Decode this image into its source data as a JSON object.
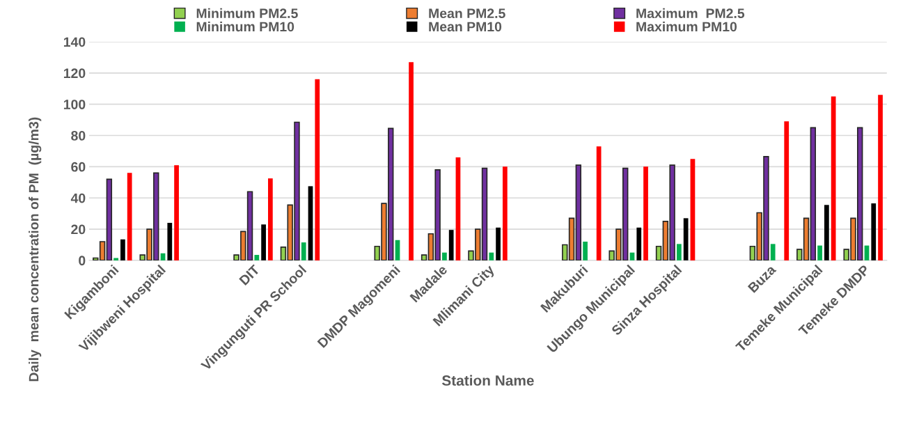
{
  "chart_data": {
    "type": "bar",
    "xlabel": "Station Name",
    "ylabel": "Daily  mean concentration of PM  (µg/m3)",
    "categories": [
      "Kigamboni",
      "Vijibweni Hospital",
      null,
      "DIT",
      "Vingunguti PR School",
      null,
      "DMDP Magomeni",
      "Madale",
      "Mlimani City",
      null,
      "Makuburi",
      "Ubungo Municipal",
      "Sinza Hospital",
      null,
      "Buza",
      "Temeke Municipal",
      "Temeke DMDP"
    ],
    "series": [
      {
        "name": "Minimum PM2.5",
        "color": "#92d050",
        "values": [
          1.5,
          3.5,
          null,
          3.5,
          8.5,
          null,
          9,
          3.5,
          6,
          null,
          10,
          6,
          9,
          null,
          9,
          7,
          7
        ]
      },
      {
        "name": "Mean PM2.5",
        "color": "#ed7d31",
        "values": [
          12,
          20,
          null,
          18.5,
          35.5,
          null,
          36.5,
          17,
          20,
          null,
          27,
          20,
          25,
          null,
          30.5,
          27,
          27
        ]
      },
      {
        "name": "Maximum  PM2.5",
        "color": "#7030a0",
        "values": [
          52,
          56,
          null,
          44,
          88.5,
          null,
          84.5,
          58,
          59,
          null,
          61,
          59,
          61,
          null,
          66.5,
          85,
          85
        ]
      },
      {
        "name": "Minimum PM10",
        "color": "#00b050",
        "values": [
          1.5,
          4.5,
          null,
          3.5,
          11.5,
          null,
          13,
          5,
          5,
          null,
          12,
          5,
          10.5,
          null,
          10.5,
          9.5,
          9.5
        ]
      },
      {
        "name": "Mean PM10",
        "color": "#000000",
        "values": [
          13.5,
          24,
          null,
          23,
          47.5,
          null,
          null,
          19.5,
          21,
          null,
          null,
          21,
          27,
          null,
          null,
          35.5,
          36.5
        ]
      },
      {
        "name": "Maximum PM10",
        "color": "#ff0000",
        "values": [
          56,
          61,
          null,
          52.5,
          116,
          null,
          127,
          66,
          60,
          null,
          73,
          60,
          65,
          null,
          89,
          105,
          106
        ]
      }
    ],
    "ylim": [
      0,
      140
    ],
    "yticks": [
      0,
      20,
      40,
      60,
      80,
      100,
      120,
      140
    ],
    "grid": "y",
    "legend": "top"
  }
}
